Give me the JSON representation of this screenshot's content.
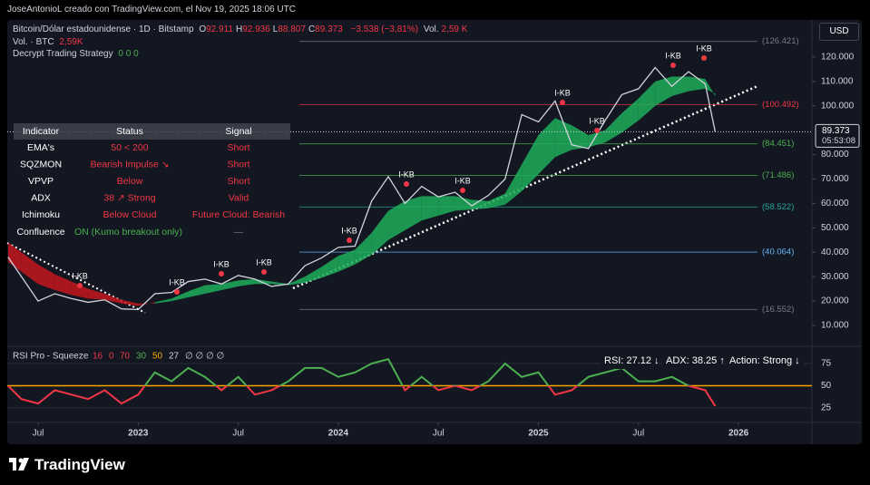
{
  "header": {
    "credit": "JoseAntonioL creado con TradingView.com, el Nov 19, 2025 18:06 UTC"
  },
  "legend": {
    "symbol": "Bitcoin/Dólar estadounidense · 1D · Bitstamp",
    "ohlc": [
      {
        "key": "O",
        "val": "92.911"
      },
      {
        "key": "H",
        "val": "92.936"
      },
      {
        "key": "L",
        "val": "88.807"
      },
      {
        "key": "C",
        "val": "89.373"
      }
    ],
    "change": "−3.538 (−3,81%)",
    "vol_key": "Vol.",
    "vol_val": "2,59 K",
    "volume_line": "Vol. · BTC",
    "volume_value": "2,59K",
    "strategy": "Decrypt Trading Strategy",
    "strategy_values": "0  0  0"
  },
  "currency": "USD",
  "table": {
    "header": [
      "Indicator",
      "Status",
      "Signal"
    ],
    "rows": [
      [
        "EMA's",
        "50 < 200",
        "Short"
      ],
      [
        "SQZMON",
        "Bearish Impulse ↘",
        "Short"
      ],
      [
        "VPVP",
        "Below",
        "Short"
      ],
      [
        "ADX",
        "38 ↗ Strong",
        "Valid"
      ],
      [
        "Ichimoku",
        "Below Cloud",
        "Future Cloud: Bearish"
      ],
      [
        "Confluence",
        "ON (Kumo breakout only)",
        "—"
      ]
    ]
  },
  "signals": [
    "I-KB",
    "I-KB",
    "I-KB",
    "I-KB",
    "I-KB",
    "I-KB",
    "I-KB",
    "I-KB",
    "I-KB",
    "I-KB",
    "I-KB"
  ],
  "chart_data": {
    "type": "line",
    "x": [
      4.2,
      5,
      6,
      7,
      8,
      9,
      10,
      11,
      12,
      13,
      14,
      15,
      16,
      17,
      18,
      19,
      20,
      21,
      22,
      23,
      24,
      25,
      26,
      27,
      28,
      29,
      30,
      31,
      32,
      33,
      34,
      35,
      36,
      37,
      38,
      39,
      40,
      41,
      42,
      43,
      44,
      45,
      46,
      46.6
    ],
    "values": [
      38,
      30,
      20,
      23,
      21,
      19.5,
      20.5,
      16.8,
      16.5,
      23,
      23.5,
      28,
      29,
      27,
      30.5,
      29,
      26,
      27,
      34.5,
      37.7,
      42,
      42.5,
      61,
      71,
      60,
      67,
      62.7,
      64.6,
      59,
      63.3,
      70,
      96.4,
      93.4,
      102,
      84,
      82.5,
      94,
      104.6,
      107,
      115.7,
      108,
      114,
      109,
      89.373
    ],
    "color": "#d1d4dc",
    "cloud": {
      "fast": [
        36,
        32,
        27,
        24.5,
        22.5,
        21,
        20.5,
        19,
        18,
        19.5,
        21,
        24,
        26.5,
        27,
        28.5,
        29,
        28,
        27,
        30,
        34,
        38.5,
        41,
        48,
        57,
        61,
        63,
        63,
        63,
        61.5,
        61,
        64,
        76,
        88,
        95,
        92,
        88,
        90,
        97,
        103,
        110,
        112,
        112,
        111,
        104
      ],
      "slow": [
        44,
        40,
        35,
        31,
        28,
        25,
        23,
        20.5,
        19,
        19,
        20,
        21.5,
        23,
        24.5,
        26,
        27,
        27,
        26.5,
        27.5,
        29.5,
        32,
        35,
        39,
        45,
        49,
        53,
        55,
        57,
        57.5,
        58,
        59.5,
        65,
        72,
        79,
        82,
        83,
        85,
        89,
        94,
        100,
        104,
        106,
        107,
        105
      ],
      "up_color": "#1fae5a",
      "down_color": "#c4161c"
    },
    "xlim": [
      4.15,
      52.4
    ],
    "xticks": [
      {
        "value": 6,
        "label": "Jul"
      },
      {
        "value": 12,
        "label": "2023"
      },
      {
        "value": 18,
        "label": "Jul"
      },
      {
        "value": 24,
        "label": "2024"
      },
      {
        "value": 30,
        "label": "Jul"
      },
      {
        "value": 36,
        "label": "2025"
      },
      {
        "value": 42,
        "label": "Jul"
      },
      {
        "value": 48,
        "label": "2026"
      }
    ],
    "ylim": [
      2.2,
      135.2
    ],
    "yticks": [
      {
        "value": 10,
        "label": "10.000"
      },
      {
        "value": 20,
        "label": "20.000"
      },
      {
        "value": 30,
        "label": "30.000"
      },
      {
        "value": 40,
        "label": "40.000"
      },
      {
        "value": 50,
        "label": "50.000"
      },
      {
        "value": 60,
        "label": "60.000"
      },
      {
        "value": 70,
        "label": "70.000"
      },
      {
        "value": 80,
        "label": "80.000"
      },
      {
        "value": 100,
        "label": "100.000"
      },
      {
        "value": 110,
        "label": "110.000"
      },
      {
        "value": 120,
        "label": "120.000"
      }
    ],
    "fib_levels": [
      {
        "value": 126.421,
        "label": "(126.421)",
        "color": "#787b86"
      },
      {
        "value": 100.492,
        "label": "(100.492)",
        "color": "#f23645"
      },
      {
        "value": 84.451,
        "label": "(84.451)",
        "color": "#4caf50"
      },
      {
        "value": 71.486,
        "label": "(71.486)",
        "color": "#4caf50"
      },
      {
        "value": 58.522,
        "label": "(58.522)",
        "color": "#26a69a"
      },
      {
        "value": 40.064,
        "label": "(40.064)",
        "color": "#64b5f6"
      },
      {
        "value": 16.552,
        "label": "(16.552)",
        "color": "#787b86"
      }
    ],
    "last_price": {
      "value": 89.373,
      "label": "89.373",
      "countdown": "05:53:08"
    },
    "rsi": {
      "title": "RSI Pro - Squeeze",
      "params": [
        {
          "text": "16",
          "color": "#f23645"
        },
        {
          "text": "0",
          "color": "#f23645"
        },
        {
          "text": "70",
          "color": "#f23645"
        },
        {
          "text": "30",
          "color": "#4caf50"
        },
        {
          "text": "50",
          "color": "#f7a600"
        },
        {
          "text": "27",
          "color": "#d1d4dc"
        },
        {
          "text": "∅ ∅ ∅ ∅",
          "color": "#d1d4dc"
        }
      ],
      "values": [
        50,
        35,
        30,
        45,
        40,
        35,
        45,
        30,
        40,
        65,
        55,
        70,
        60,
        45,
        60,
        40,
        45,
        55,
        70,
        70,
        60,
        65,
        75,
        80,
        45,
        60,
        45,
        50,
        45,
        55,
        75,
        60,
        65,
        40,
        45,
        60,
        65,
        70,
        55,
        55,
        60,
        50,
        45,
        27.12
      ],
      "ylim": [
        14.8,
        88.3
      ],
      "yticks": [
        25,
        50,
        75
      ],
      "readouts": [
        "RSI: 27.12 ↓",
        "ADX: 38.25 ↑",
        "Action: Strong ↓"
      ]
    }
  },
  "footer": {
    "brand": "TradingView"
  }
}
